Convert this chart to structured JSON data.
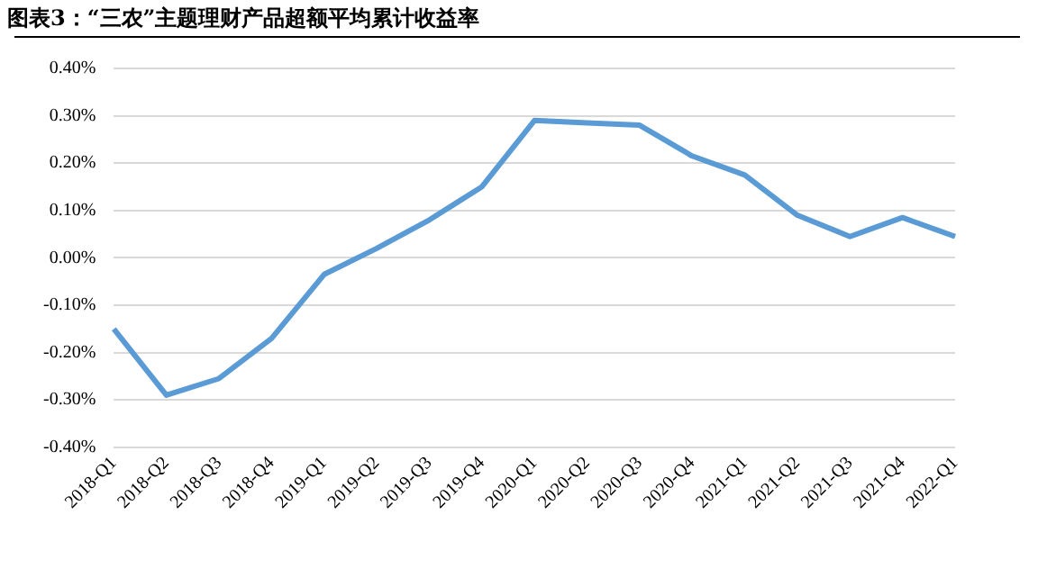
{
  "chart_data": {
    "type": "line",
    "title": "图表3：“三农”主题理财产品超额平均累计收益率",
    "categories": [
      "2018-Q1",
      "2018-Q2",
      "2018-Q3",
      "2018-Q4",
      "2019-Q1",
      "2019-Q2",
      "2019-Q3",
      "2019-Q4",
      "2020-Q1",
      "2020-Q2",
      "2020-Q3",
      "2020-Q4",
      "2021-Q1",
      "2021-Q2",
      "2021-Q3",
      "2021-Q4",
      "2022-Q1"
    ],
    "series": [
      {
        "color": "#5b9bd5",
        "values": [
          -0.15,
          -0.29,
          -0.255,
          -0.17,
          -0.035,
          0.02,
          0.08,
          0.15,
          0.29,
          0.285,
          0.28,
          0.215,
          0.175,
          0.09,
          0.045,
          0.085,
          0.045
        ]
      }
    ],
    "ylim": [
      -0.4,
      0.4
    ],
    "yticks": [
      {
        "value": -0.4,
        "label": "-0.40%"
      },
      {
        "value": -0.3,
        "label": "-0.30%"
      },
      {
        "value": -0.2,
        "label": "-0.20%"
      },
      {
        "value": -0.1,
        "label": "-0.10%"
      },
      {
        "value": 0,
        "label": "0.00%"
      },
      {
        "value": 0.1,
        "label": "0.10%"
      },
      {
        "value": 0.2,
        "label": "0.20%"
      },
      {
        "value": 0.3,
        "label": "0.30%"
      },
      {
        "value": 0.4,
        "label": "0.40%"
      }
    ],
    "grid": "y",
    "legend": false,
    "marker": "none",
    "line_style": "solid"
  }
}
